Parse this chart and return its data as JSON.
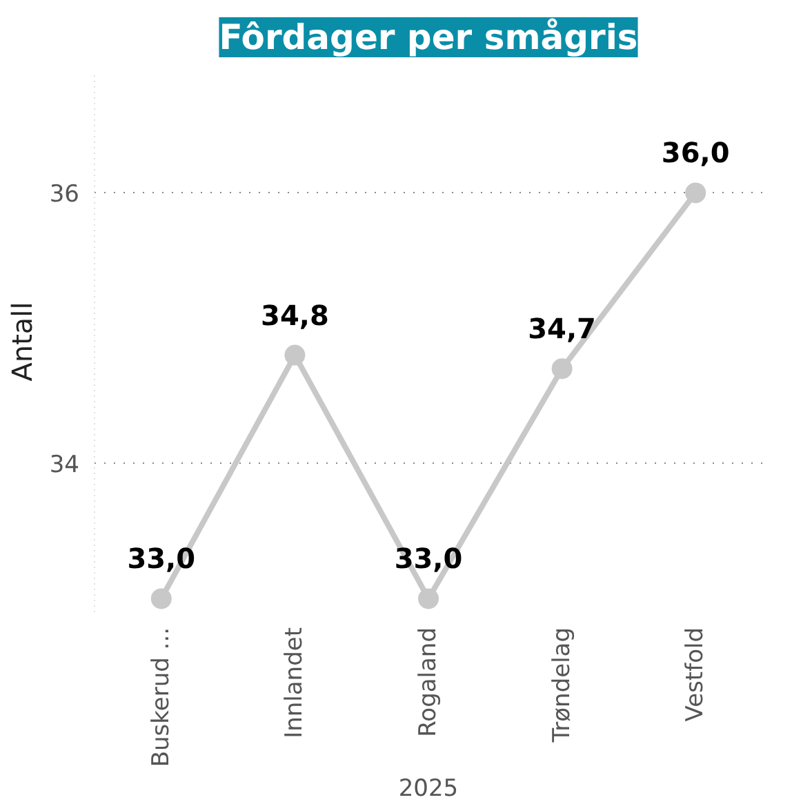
{
  "chart_data": {
    "type": "line",
    "title": "Fôrdager per smågris",
    "xlabel": "2025",
    "ylabel": "Antall",
    "categories": [
      "Buskerud ...",
      "Innlandet",
      "Rogaland",
      "Trøndelag",
      "Vestfold"
    ],
    "series": [
      {
        "color": "#c8c8c8",
        "values": [
          33.0,
          34.8,
          33.0,
          34.7,
          36.0
        ],
        "value_labels": [
          "33,0",
          "34,8",
          "33,0",
          "34,7",
          "36,0"
        ]
      }
    ],
    "ylim": [
      32.9,
      36.9
    ],
    "yticks": [
      34,
      36
    ],
    "grid": "y",
    "marker": "circle",
    "line_style": "solid"
  }
}
